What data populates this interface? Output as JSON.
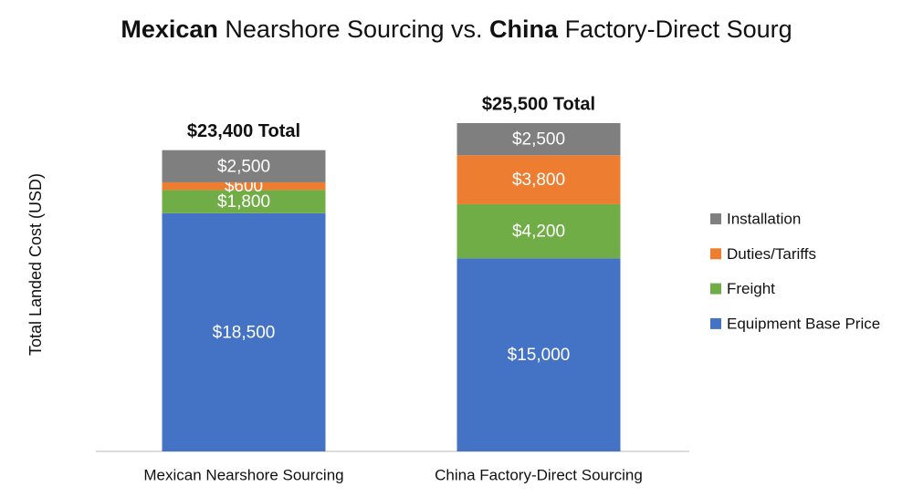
{
  "chart_data": {
    "type": "stacked_bar",
    "title": [
      {
        "text": "Mexican",
        "bold": true
      },
      {
        "text": " Nearshore Sourcing vs. ",
        "bold": false
      },
      {
        "text": "China",
        "bold": true
      },
      {
        "text": " Factory-Direct Sourg",
        "bold": false
      }
    ],
    "y_label": "Total Landed Cost (USD)",
    "categories": [
      "Mexican Nearshore Sourcing",
      "China Factory-Direct Sourcing"
    ],
    "total_labels": [
      "$23,400 Total",
      "$25,500 Total"
    ],
    "series": [
      {
        "name": "Equipment Base Price",
        "color": "#4472c4",
        "values": [
          18500,
          15000
        ],
        "value_labels": [
          "$18,500",
          "$15,000"
        ]
      },
      {
        "name": "Freight",
        "color": "#70ad47",
        "values": [
          1800,
          4200
        ],
        "value_labels": [
          "$1,800",
          "$4,200"
        ]
      },
      {
        "name": "Duties/Tariffs",
        "color": "#ed7d31",
        "values": [
          600,
          3800
        ],
        "value_labels": [
          "$600",
          "$3,800"
        ]
      },
      {
        "name": "Installation",
        "color": "#7f7f7f",
        "values": [
          2500,
          2500
        ],
        "value_labels": [
          "$2,500",
          "$2,500"
        ]
      }
    ],
    "legend": "right"
  }
}
